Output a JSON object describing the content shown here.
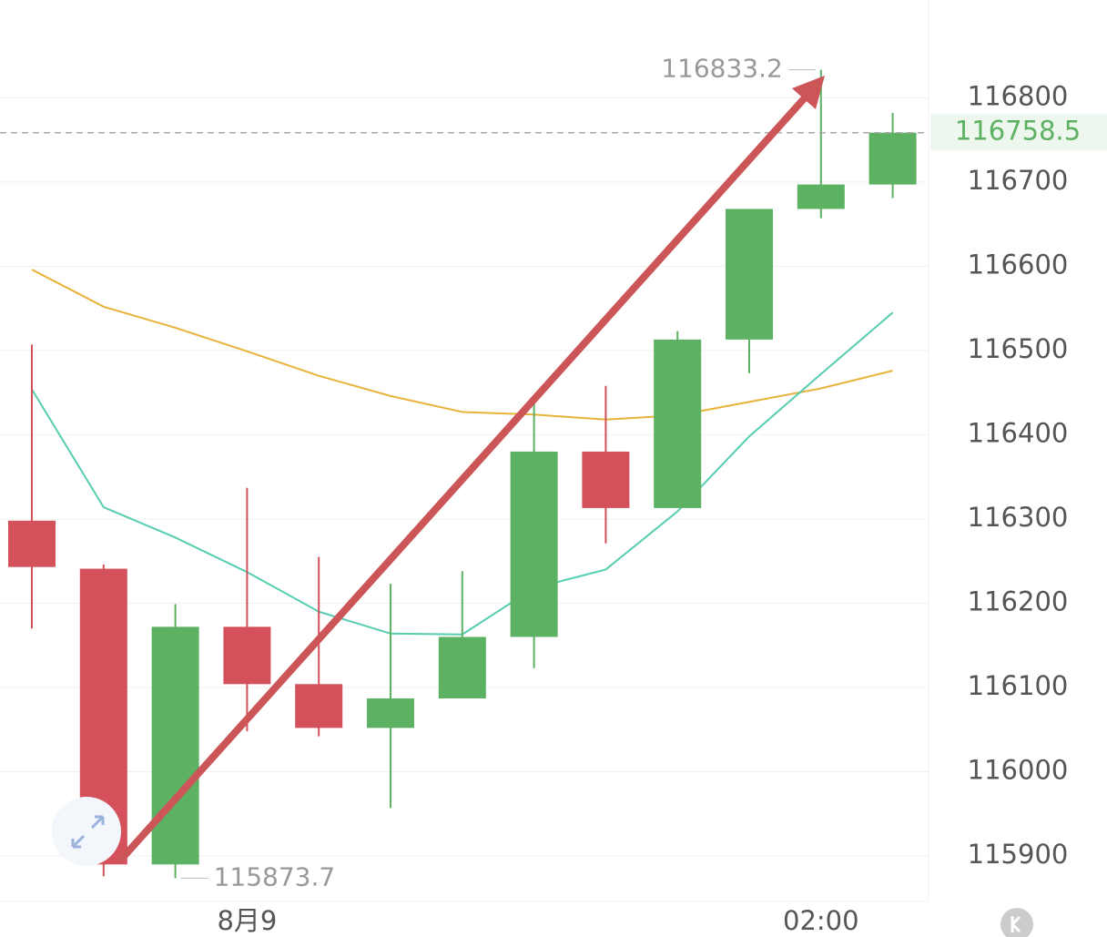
{
  "chart_data": {
    "type": "candlestick",
    "categories": [
      null,
      null,
      null,
      "8月9",
      null,
      null,
      null,
      null,
      null,
      null,
      null,
      "02:00",
      null
    ],
    "open": [
      116298,
      116241,
      115890,
      116172,
      116104,
      116052,
      116087,
      116160,
      116380,
      116313,
      116513,
      116668,
      116697
    ],
    "high": [
      116507,
      116246,
      116199,
      116337,
      116255,
      116223,
      116238,
      116437,
      116458,
      116523,
      116668,
      116833.2,
      116782
    ],
    "low": [
      116170,
      115876,
      115873.7,
      116048,
      116042,
      115957,
      116087,
      116123,
      116271,
      116313,
      116473,
      116657,
      116681
    ],
    "close": [
      116243,
      115890,
      116172,
      116104,
      116052,
      116087,
      116160,
      116380,
      116313,
      116513,
      116668,
      116697,
      116758.5
    ],
    "up_color": "#5cb162",
    "down_color": "#d4505a",
    "lines": [
      {
        "color": "#e8b33a",
        "values": [
          116596,
          116552,
          116527,
          116499,
          116470,
          116446,
          116427,
          116424,
          116418,
          116423,
          116439,
          116455,
          116476
        ]
      },
      {
        "color": "#55cdb0",
        "values": [
          116454,
          116314,
          116278,
          116237,
          116190,
          116164,
          116163,
          116218,
          116240,
          116309,
          116398,
          116472,
          116545
        ]
      }
    ],
    "ylim": [
      115846,
      116916
    ],
    "yticks": [
      115900,
      116000,
      116100,
      116200,
      116300,
      116400,
      116500,
      116600,
      116700,
      116800
    ],
    "grid": true
  }
}
